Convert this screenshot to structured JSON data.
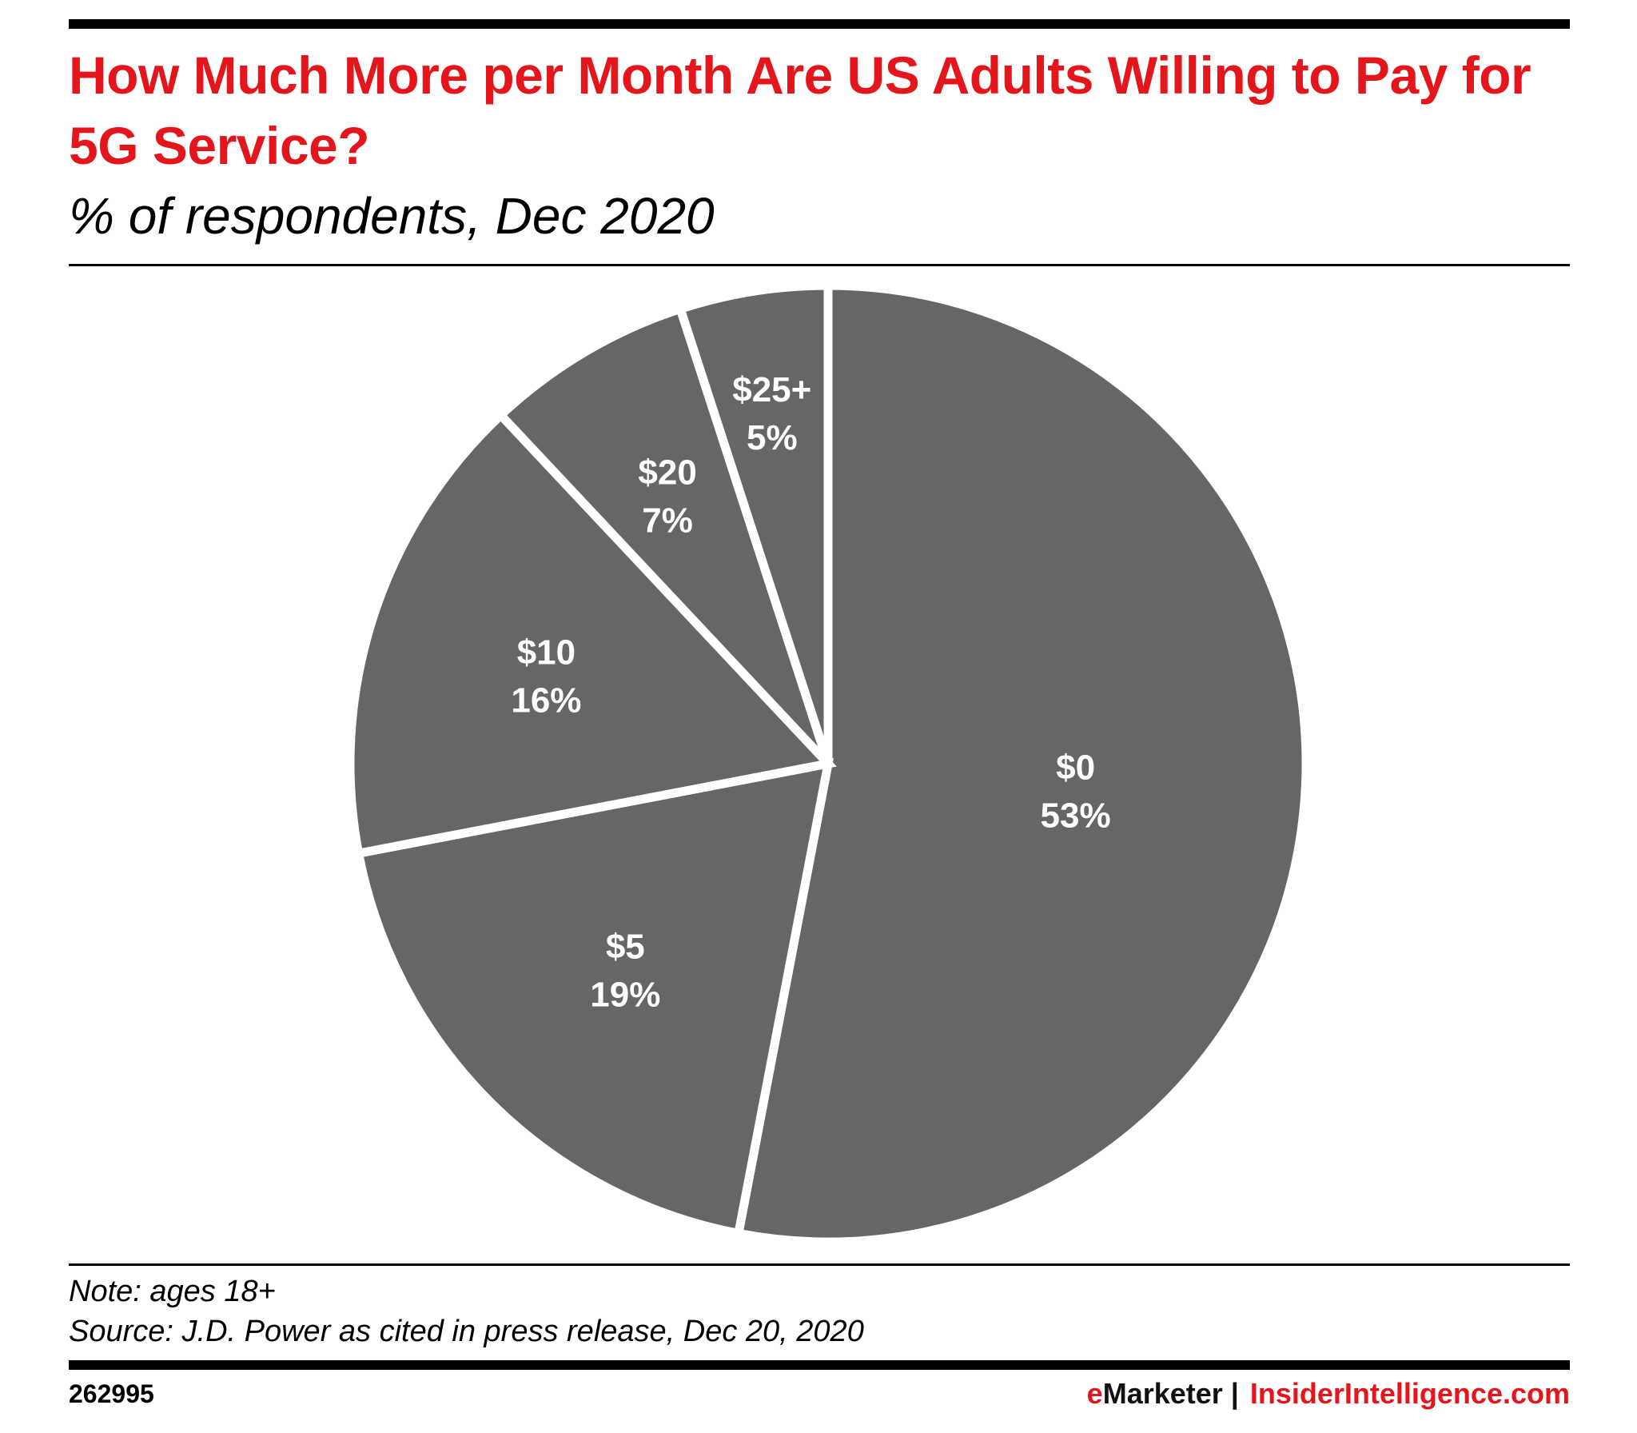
{
  "header": {
    "title": "How Much More per Month Are US Adults Willing to Pay for 5G Service?",
    "subtitle": "% of respondents, Dec 2020"
  },
  "colors": {
    "accent": "#e4161c",
    "slice": "#666666",
    "label": "#ffffff"
  },
  "chart_data": {
    "type": "pie",
    "title": "How Much More per Month Are US Adults Willing to Pay for 5G Service?",
    "subtitle": "% of respondents, Dec 2020",
    "unit": "%",
    "slices": [
      {
        "label": "$0",
        "value": 53,
        "value_label": "53%"
      },
      {
        "label": "$5",
        "value": 19,
        "value_label": "19%"
      },
      {
        "label": "$10",
        "value": 16,
        "value_label": "16%"
      },
      {
        "label": "$20",
        "value": 7,
        "value_label": "7%"
      },
      {
        "label": "$25+",
        "value": 5,
        "value_label": "5%"
      }
    ],
    "start_angle_deg": 0,
    "direction": "clockwise"
  },
  "footer": {
    "note": "Note: ages 18+",
    "source": "Source: J.D. Power as cited in press release, Dec 20, 2020",
    "chart_id": "262995",
    "brand_e": "e",
    "brand_marketer": "Marketer",
    "brand_separator": "|",
    "brand_site": "InsiderIntelligence.com"
  }
}
